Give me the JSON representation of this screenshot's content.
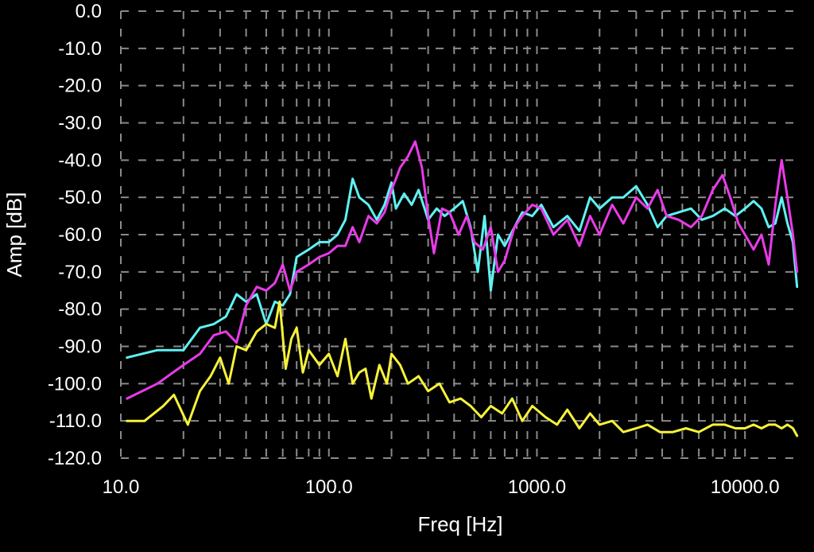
{
  "chart_data": {
    "type": "line",
    "title": "",
    "xlabel": "Freq [Hz]",
    "ylabel": "Amp [dB]",
    "xscale": "log",
    "xlim": [
      10,
      18000
    ],
    "ylim": [
      -120,
      0
    ],
    "x_ticks": [
      10,
      100,
      1000,
      10000
    ],
    "x_tick_labels": [
      "10.0",
      "100.0",
      "1000.0",
      "10000.0"
    ],
    "y_ticks": [
      0,
      -10,
      -20,
      -30,
      -40,
      -50,
      -60,
      -70,
      -80,
      -90,
      -100,
      -110,
      -120
    ],
    "y_tick_labels": [
      "0.0",
      "-10.0",
      "-20.0",
      "-30.0",
      "-40.0",
      "-50.0",
      "-60.0",
      "-70.0",
      "-80.0",
      "-90.0",
      "-100.0",
      "-110.0",
      "-120.0"
    ],
    "grid": true,
    "background": "#000000",
    "series": [
      {
        "color": "#5ff2f2",
        "x": [
          10.7,
          15,
          20,
          24,
          28,
          32,
          36,
          40,
          45,
          50,
          55,
          60,
          65,
          70,
          80,
          90,
          100,
          110,
          120,
          130,
          140,
          155,
          170,
          185,
          200,
          210,
          230,
          250,
          270,
          300,
          330,
          360,
          400,
          440,
          480,
          520,
          560,
          600,
          650,
          700,
          780,
          850,
          950,
          1050,
          1200,
          1400,
          1600,
          1800,
          2000,
          2300,
          2600,
          3000,
          3400,
          3800,
          4200,
          4800,
          5500,
          6200,
          7000,
          8000,
          9000,
          10000,
          11000,
          12000,
          13000,
          14000,
          15000,
          16000,
          17000,
          17800
        ],
        "y": [
          -93,
          -91,
          -91,
          -85,
          -84,
          -82,
          -76,
          -78,
          -76,
          -84,
          -78,
          -79,
          -76,
          -66,
          -64,
          -62,
          -62,
          -60,
          -56,
          -45,
          -50,
          -52,
          -56,
          -52,
          -46,
          -53,
          -49,
          -52,
          -48,
          -56,
          -53,
          -55,
          -53,
          -51,
          -58,
          -70,
          -55,
          -75,
          -60,
          -63,
          -58,
          -54,
          -55,
          -52,
          -58,
          -55,
          -59,
          -50,
          -53,
          -50,
          -50,
          -47,
          -52,
          -58,
          -55,
          -54,
          -53,
          -56,
          -55,
          -53,
          -55,
          -53,
          -51,
          -53,
          -58,
          -57,
          -50,
          -57,
          -62,
          -74
        ]
      },
      {
        "color": "#e83be8",
        "x": [
          10.7,
          15,
          20,
          24,
          28,
          32,
          36,
          40,
          45,
          50,
          55,
          60,
          65,
          70,
          80,
          90,
          100,
          110,
          120,
          130,
          140,
          155,
          170,
          185,
          200,
          210,
          220,
          240,
          260,
          280,
          300,
          320,
          350,
          380,
          420,
          460,
          500,
          550,
          600,
          650,
          700,
          780,
          850,
          950,
          1050,
          1200,
          1400,
          1600,
          1800,
          2000,
          2300,
          2600,
          3000,
          3400,
          3800,
          4200,
          4800,
          5500,
          6200,
          7000,
          7800,
          8500,
          9300,
          10000,
          11000,
          12000,
          13000,
          14000,
          15000,
          16000,
          17000,
          17800
        ],
        "y": [
          -104,
          -100,
          -95,
          -92,
          -87,
          -86,
          -89,
          -79,
          -74,
          -75,
          -73,
          -68,
          -75,
          -70,
          -68,
          -66,
          -65,
          -63,
          -63,
          -58,
          -62,
          -55,
          -57,
          -54,
          -48,
          -45,
          -42,
          -39,
          -35,
          -42,
          -55,
          -65,
          -53,
          -54,
          -60,
          -55,
          -62,
          -64,
          -58,
          -70,
          -67,
          -58,
          -55,
          -52,
          -53,
          -60,
          -56,
          -63,
          -55,
          -60,
          -52,
          -57,
          -50,
          -53,
          -48,
          -55,
          -56,
          -58,
          -55,
          -48,
          -44,
          -50,
          -57,
          -60,
          -64,
          -60,
          -68,
          -52,
          -40,
          -50,
          -60,
          -70
        ]
      },
      {
        "color": "#f7f23a",
        "x": [
          10.7,
          13,
          16,
          18,
          21,
          24,
          27,
          30,
          33,
          36,
          40,
          45,
          50,
          55,
          58,
          62,
          66,
          70,
          75,
          80,
          90,
          100,
          110,
          120,
          130,
          140,
          150,
          160,
          175,
          190,
          200,
          220,
          240,
          270,
          300,
          340,
          380,
          430,
          480,
          540,
          600,
          680,
          760,
          850,
          950,
          1100,
          1250,
          1400,
          1600,
          1800,
          2000,
          2300,
          2600,
          3000,
          3400,
          3900,
          4500,
          5200,
          6000,
          7000,
          8000,
          9000,
          10000,
          11000,
          12000,
          13000,
          14000,
          15000,
          16000,
          17000,
          17800
        ],
        "y": [
          -110,
          -110,
          -106,
          -103,
          -111,
          -102,
          -98,
          -93,
          -100,
          -90,
          -91,
          -86,
          -84,
          -85,
          -78,
          -96,
          -88,
          -85,
          -97,
          -91,
          -95,
          -92,
          -98,
          -88,
          -100,
          -97,
          -96,
          -104,
          -95,
          -100,
          -92,
          -95,
          -100,
          -98,
          -102,
          -100,
          -105,
          -104,
          -106,
          -109,
          -106,
          -108,
          -104,
          -110,
          -106,
          -109,
          -111,
          -107,
          -112,
          -108,
          -111,
          -110,
          -113,
          -112,
          -111,
          -113,
          -113,
          -112,
          -113,
          -111,
          -111,
          -112,
          -112,
          -111,
          -112,
          -111,
          -111,
          -112,
          -111,
          -112,
          -114
        ]
      }
    ]
  }
}
